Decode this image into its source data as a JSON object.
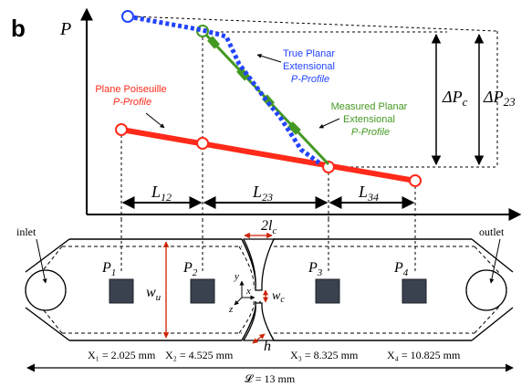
{
  "panel_letter": "b",
  "axis_p": "P",
  "labels": {
    "true_profile": [
      "True Planar",
      "Extensional",
      "P-Profile"
    ],
    "measured_profile": [
      "Measured Planar",
      "Extensional",
      "P-Profile"
    ],
    "poiseuille_profile": [
      "Plane Poiseuille",
      "P-Profile"
    ],
    "delta_pc": "ΔP",
    "delta_pc_sub": "c",
    "delta_p23": "ΔP",
    "delta_p23_sub": "23"
  },
  "lengths": {
    "l12": "L",
    "l12_sub": "12",
    "l23": "L",
    "l23_sub": "23",
    "l34": "L",
    "l34_sub": "34"
  },
  "channel": {
    "inlet": "inlet",
    "outlet": "outlet",
    "p1": "P",
    "p1_sub": "1",
    "p2": "P",
    "p2_sub": "2",
    "p3": "P",
    "p3_sub": "3",
    "p4": "P",
    "p4_sub": "4",
    "wu": "w",
    "wu_sub": "u",
    "wc": "w",
    "wc_sub": "c",
    "lc": "2l",
    "lc_sub": "c",
    "h": "h",
    "axis_x": "x",
    "axis_y": "y",
    "axis_z": "z"
  },
  "positions": {
    "x1": "X₁ = 2.025 mm",
    "x2": "X₂ = 4.525 mm",
    "x3": "X₃ = 8.325 mm",
    "x4": "X₄ = 10.825 mm",
    "total": "𝓛 = 13 mm"
  },
  "colors": {
    "poiseuille": "#ff2a1a",
    "true": "#2244ff",
    "measured": "#449922",
    "black": "#000000"
  }
}
